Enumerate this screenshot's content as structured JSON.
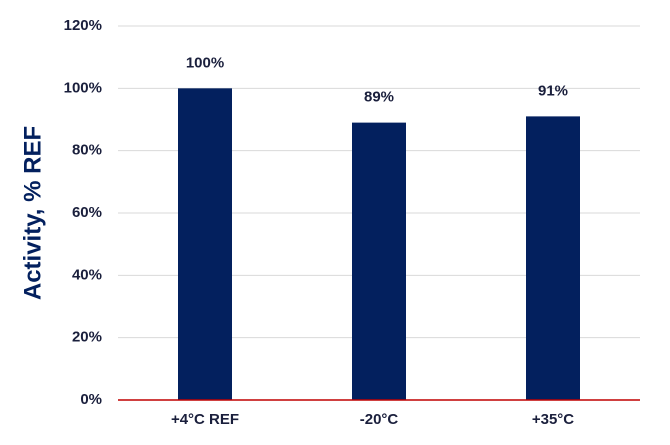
{
  "chart_data": {
    "type": "bar",
    "y_axis_label": "Activity, % REF",
    "categories": [
      "+4°C REF",
      "-20°C",
      "+35°C"
    ],
    "values": [
      100,
      89,
      91
    ],
    "value_labels": [
      "100%",
      "89%",
      "91%"
    ],
    "color": "#03205e",
    "ylim": [
      0,
      120
    ],
    "yticks": [
      {
        "value": 0,
        "label": "0%"
      },
      {
        "value": 20,
        "label": "20%"
      },
      {
        "value": 40,
        "label": "40%"
      },
      {
        "value": 60,
        "label": "60%"
      },
      {
        "value": 80,
        "label": "80%"
      },
      {
        "value": 100,
        "label": "100%"
      },
      {
        "value": 120,
        "label": "120%"
      }
    ],
    "grid": true
  }
}
